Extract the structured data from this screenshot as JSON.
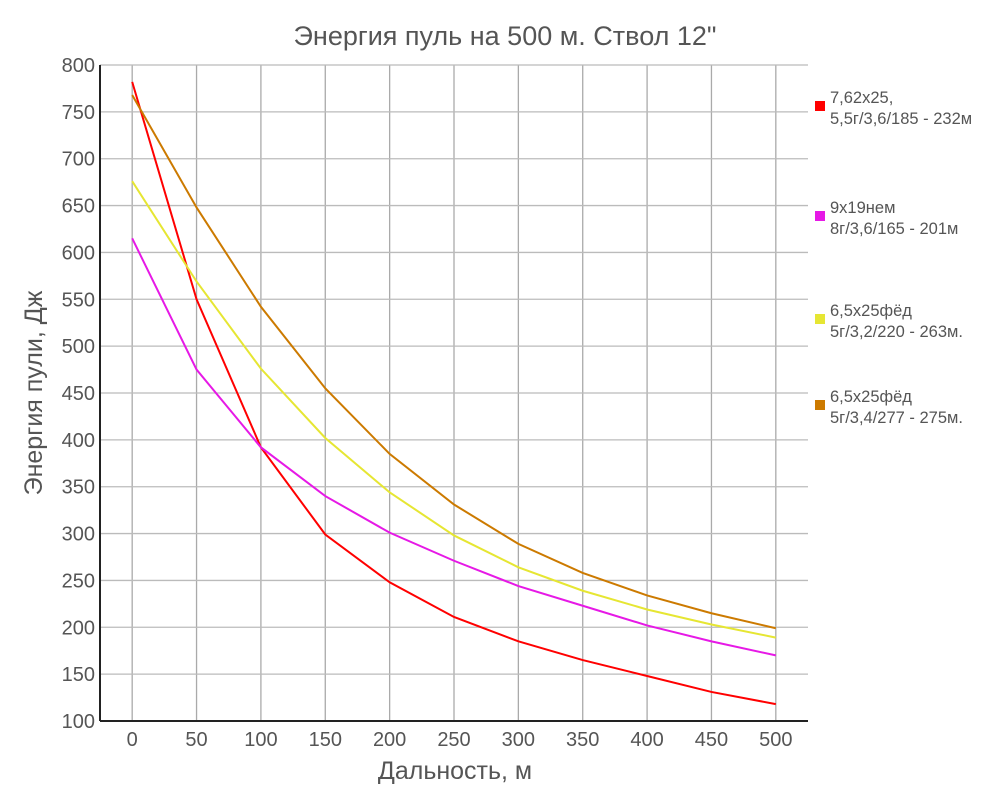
{
  "chart_data": {
    "type": "line",
    "title": "Энергия пуль на 500 м. Ствол 12\"",
    "xlabel": "Дальность, м",
    "ylabel": "Энергия пули, Дж",
    "xlim": [
      -25,
      525
    ],
    "ylim": [
      100,
      800
    ],
    "x_ticks": [
      0,
      50,
      100,
      150,
      200,
      250,
      300,
      350,
      400,
      450,
      500
    ],
    "y_ticks": [
      100,
      150,
      200,
      250,
      300,
      350,
      400,
      450,
      500,
      550,
      600,
      650,
      700,
      750,
      800
    ],
    "grid": true,
    "legend_placement": "right",
    "x": [
      0,
      50,
      100,
      150,
      200,
      250,
      300,
      350,
      400,
      450,
      500
    ],
    "series": [
      {
        "name": "7,62x25,\n5,5г/3,6/185 - 232м",
        "lines": [
          "7,62x25,",
          "5,5г/3,6/185 - 232м"
        ],
        "color": "#ff0000",
        "values": [
          782,
          550,
          392,
          299,
          248,
          211,
          185,
          165,
          148,
          131,
          118
        ]
      },
      {
        "name": "9x19нем\n8г/3,6/165 - 201м",
        "lines": [
          "9x19нем",
          "8г/3,6/165 - 201м"
        ],
        "color": "#e619e6",
        "values": [
          615,
          475,
          392,
          340,
          301,
          271,
          244,
          223,
          202,
          185,
          170
        ]
      },
      {
        "name": "6,5x25фёд\n5г/3,2/220 - 263м.",
        "lines": [
          "6,5x25фёд",
          "5г/3,2/220 - 263м."
        ],
        "color": "#e6e633",
        "values": [
          676,
          569,
          476,
          402,
          344,
          298,
          264,
          239,
          219,
          203,
          189
        ]
      },
      {
        "name": "6,5x25фёд\n5г/3,4/277 - 275м.",
        "lines": [
          "6,5x25фёд",
          "5г/3,4/277 - 275м."
        ],
        "color": "#cc7a00",
        "values": [
          768,
          648,
          542,
          455,
          385,
          331,
          289,
          258,
          234,
          215,
          199
        ]
      }
    ]
  }
}
